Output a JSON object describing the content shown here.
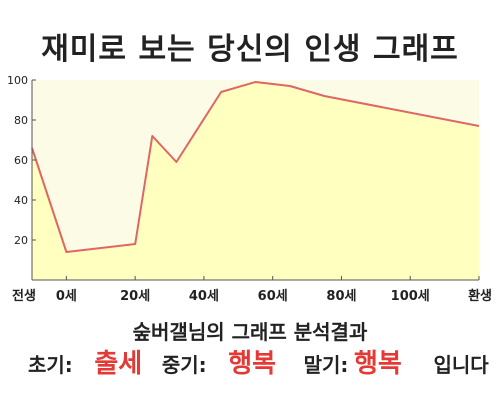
{
  "chart_data": {
    "type": "area",
    "title": "재미로 보는 당신의 인생 그래프",
    "categories": [
      "전생",
      "0세",
      "20세",
      "40세",
      "60세",
      "80세",
      "100세",
      "환생"
    ],
    "x": [
      -10,
      0,
      20,
      40,
      60,
      80,
      100,
      120
    ],
    "series": [
      {
        "x": [
          -10,
          0,
          20,
          25,
          32,
          45,
          55,
          65,
          75,
          120
        ],
        "values": [
          66,
          14,
          18,
          72,
          59,
          94,
          99,
          97,
          92,
          77
        ]
      }
    ],
    "ylim": [
      0,
      100
    ],
    "xlim": [
      -10,
      120
    ],
    "yticks": [
      20,
      40,
      60,
      80,
      100
    ],
    "grid": false,
    "legend": "none",
    "colors": {
      "fill": "#ffffc0",
      "line": "#e06666",
      "plot_background": "#fbfbe6",
      "axis": "#555555"
    }
  },
  "summary": {
    "subtitle": "숲버갤님의 그래프 분석결과",
    "early_label": "초기:",
    "early_value": "출세",
    "mid_label": "중기:",
    "mid_value": "행복",
    "late_label": "말기:",
    "late_value": "행복",
    "suffix": "입니다"
  }
}
